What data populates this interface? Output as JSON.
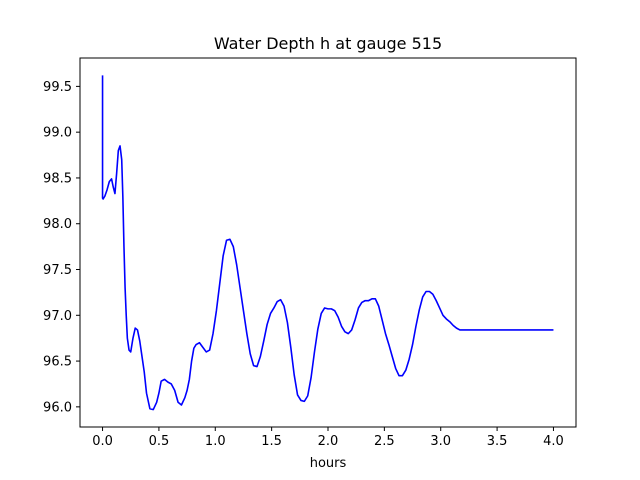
{
  "chart_data": {
    "type": "line",
    "title": "Water Depth h at gauge 515",
    "xlabel": "hours",
    "ylabel": "",
    "xlim": [
      -0.2,
      4.2
    ],
    "ylim": [
      95.78,
      99.81
    ],
    "x_ticks": [
      0.0,
      0.5,
      1.0,
      1.5,
      2.0,
      2.5,
      3.0,
      3.5,
      4.0
    ],
    "x_tick_labels": [
      "0.0",
      "0.5",
      "1.0",
      "1.5",
      "2.0",
      "2.5",
      "3.0",
      "3.5",
      "4.0"
    ],
    "y_ticks": [
      96.0,
      96.5,
      97.0,
      97.5,
      98.0,
      98.5,
      99.0,
      99.5
    ],
    "y_tick_labels": [
      "96.0",
      "96.5",
      "97.0",
      "97.5",
      "98.0",
      "98.5",
      "99.0",
      "99.5"
    ],
    "grid": false,
    "series": [
      {
        "color": "#0000ff",
        "x": [
          0.0,
          0.0,
          0.005,
          0.02,
          0.04,
          0.06,
          0.08,
          0.095,
          0.11,
          0.125,
          0.14,
          0.155,
          0.17,
          0.18,
          0.19,
          0.2,
          0.21,
          0.22,
          0.235,
          0.25,
          0.27,
          0.29,
          0.31,
          0.33,
          0.35,
          0.37,
          0.39,
          0.42,
          0.45,
          0.48,
          0.5,
          0.52,
          0.55,
          0.58,
          0.61,
          0.64,
          0.67,
          0.7,
          0.73,
          0.75,
          0.77,
          0.79,
          0.81,
          0.83,
          0.86,
          0.89,
          0.92,
          0.95,
          0.98,
          1.01,
          1.04,
          1.07,
          1.1,
          1.13,
          1.16,
          1.19,
          1.22,
          1.25,
          1.28,
          1.31,
          1.34,
          1.37,
          1.4,
          1.43,
          1.46,
          1.49,
          1.52,
          1.55,
          1.58,
          1.61,
          1.64,
          1.67,
          1.7,
          1.73,
          1.76,
          1.79,
          1.82,
          1.85,
          1.88,
          1.91,
          1.94,
          1.97,
          2.0,
          2.03,
          2.06,
          2.09,
          2.12,
          2.15,
          2.18,
          2.21,
          2.24,
          2.27,
          2.3,
          2.33,
          2.36,
          2.39,
          2.42,
          2.45,
          2.48,
          2.51,
          2.54,
          2.57,
          2.6,
          2.63,
          2.66,
          2.69,
          2.72,
          2.75,
          2.78,
          2.81,
          2.84,
          2.87,
          2.9,
          2.93,
          2.96,
          2.99,
          3.02,
          3.05,
          3.08,
          3.11,
          3.14,
          3.17,
          3.2,
          3.23,
          3.26,
          3.29,
          3.32,
          3.35,
          3.38,
          3.41,
          3.44,
          3.47,
          3.5,
          3.53,
          3.56,
          3.59,
          3.62,
          3.65,
          3.68,
          3.71,
          3.74,
          3.77,
          3.8,
          3.83,
          3.86,
          3.89,
          3.92,
          3.95,
          3.98,
          4.0
        ],
        "y": [
          99.62,
          98.28,
          98.27,
          98.3,
          98.37,
          98.46,
          98.49,
          98.4,
          98.33,
          98.55,
          98.8,
          98.85,
          98.7,
          98.3,
          97.75,
          97.3,
          97.0,
          96.75,
          96.62,
          96.6,
          96.75,
          96.86,
          96.84,
          96.72,
          96.55,
          96.38,
          96.15,
          95.98,
          95.97,
          96.05,
          96.15,
          96.28,
          96.3,
          96.27,
          96.25,
          96.18,
          96.05,
          96.02,
          96.1,
          96.18,
          96.3,
          96.5,
          96.64,
          96.68,
          96.7,
          96.65,
          96.6,
          96.62,
          96.8,
          97.05,
          97.35,
          97.65,
          97.82,
          97.83,
          97.75,
          97.55,
          97.3,
          97.05,
          96.8,
          96.58,
          96.45,
          96.44,
          96.55,
          96.72,
          96.9,
          97.02,
          97.08,
          97.15,
          97.17,
          97.1,
          96.92,
          96.65,
          96.35,
          96.13,
          96.07,
          96.06,
          96.12,
          96.32,
          96.6,
          96.85,
          97.02,
          97.08,
          97.07,
          97.07,
          97.05,
          96.98,
          96.88,
          96.82,
          96.8,
          96.84,
          96.95,
          97.08,
          97.14,
          97.16,
          97.16,
          97.18,
          97.18,
          97.1,
          96.95,
          96.8,
          96.68,
          96.55,
          96.42,
          96.34,
          96.34,
          96.4,
          96.52,
          96.68,
          96.88,
          97.06,
          97.2,
          97.26,
          97.26,
          97.23,
          97.16,
          97.08,
          97.0,
          96.96,
          96.93,
          96.89,
          96.86,
          96.84,
          96.84,
          96.84,
          96.84,
          96.84,
          96.84,
          96.84,
          96.84,
          96.84,
          96.84,
          96.84,
          96.84,
          96.84,
          96.84,
          96.84,
          96.84,
          96.84,
          96.84,
          96.84,
          96.84,
          96.84,
          96.84,
          96.84,
          96.84,
          96.84,
          96.84,
          96.84,
          96.84,
          96.84
        ]
      }
    ]
  }
}
